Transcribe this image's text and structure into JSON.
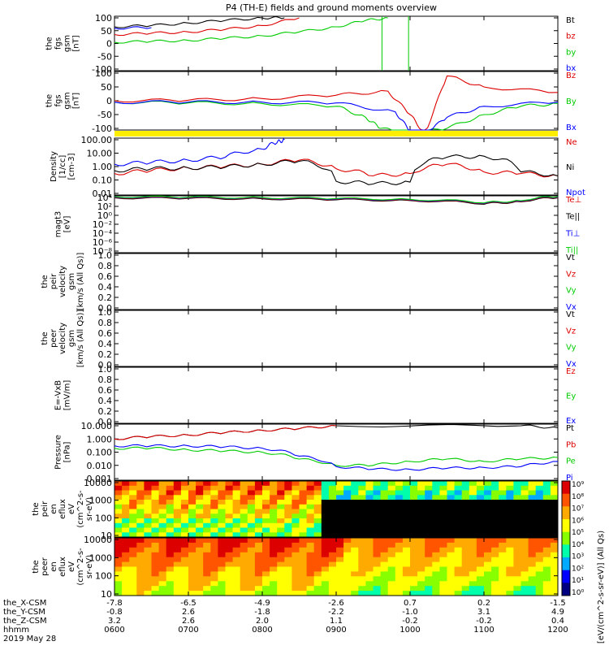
{
  "title": "P4 (TH-E) fields and ground moments overview",
  "colors": {
    "black": "#000000",
    "red": "#dd0000",
    "green": "#00cc00",
    "blue": "#0000ff",
    "yellow": "#ffee00",
    "panelBorder": "#000000"
  },
  "panels": [
    {
      "id": "fgs-gsm",
      "ylabel": [
        "the",
        "fgs",
        "gsm",
        "[nT]"
      ],
      "ticks": [
        "100",
        "50",
        "0",
        "-50",
        "-100"
      ],
      "legend": [
        {
          "text": "Bt",
          "color": "#000000"
        },
        {
          "text": "bz",
          "color": "#dd0000"
        },
        {
          "text": "by",
          "color": "#00cc00"
        },
        {
          "text": "bx",
          "color": "#0000ff"
        }
      ]
    },
    {
      "id": "fgs-gsm-2",
      "ylabel": [
        "the",
        "fgs",
        "gsm",
        "[nT]"
      ],
      "ticks": [
        "100",
        "50",
        "0",
        "-50",
        "-100"
      ],
      "legend": [
        {
          "text": "Bz",
          "color": "#dd0000"
        },
        {
          "text": "By",
          "color": "#00cc00"
        },
        {
          "text": "Bx",
          "color": "#0000ff"
        }
      ]
    },
    {
      "id": "density",
      "ylabel": [
        "Density",
        "[1/cc]",
        "[cm-3]"
      ],
      "ticks": [
        "100.00",
        "10.00",
        "1.00",
        "0.10",
        "0.01"
      ],
      "legend": [
        {
          "text": "Ne",
          "color": "#dd0000"
        },
        {
          "text": "Ni",
          "color": "#000000"
        },
        {
          "text": "Npot",
          "color": "#0000ff"
        }
      ]
    },
    {
      "id": "temperature",
      "ylabel": [
        "magt3",
        "[eV]"
      ],
      "ticks": [
        "10⁴",
        "10²",
        "10⁰",
        "10⁻²",
        "10⁻⁴",
        "10⁻⁶",
        "10⁻⁸"
      ],
      "legend": [
        {
          "text": "Te⊥",
          "color": "#dd0000"
        },
        {
          "text": "Te||",
          "color": "#000000"
        },
        {
          "text": "Ti⊥",
          "color": "#0000ff"
        },
        {
          "text": "Ti||",
          "color": "#00cc00"
        }
      ]
    },
    {
      "id": "peir-velocity",
      "ylabel": [
        "the",
        "peir",
        "velocity",
        "gsm",
        "[km/s (All Qs)]"
      ],
      "ticks": [
        "1.0",
        "0.8",
        "0.6",
        "0.4",
        "0.2",
        "0.0"
      ],
      "legend": [
        {
          "text": "Vt",
          "color": "#000000"
        },
        {
          "text": "Vz",
          "color": "#dd0000"
        },
        {
          "text": "Vy",
          "color": "#00cc00"
        },
        {
          "text": "Vx",
          "color": "#0000ff"
        }
      ]
    },
    {
      "id": "peer-velocity",
      "ylabel": [
        "the",
        "peer",
        "velocity",
        "gsm",
        "[km/s (All Qs)]"
      ],
      "ticks": [
        "1.0",
        "0.8",
        "0.6",
        "0.4",
        "0.2",
        "0.0"
      ],
      "legend": [
        {
          "text": "Vt",
          "color": "#000000"
        },
        {
          "text": "Vz",
          "color": "#dd0000"
        },
        {
          "text": "Vy",
          "color": "#00cc00"
        },
        {
          "text": "Vx",
          "color": "#0000ff"
        }
      ]
    },
    {
      "id": "efield",
      "ylabel": [
        "E=-VxB",
        "[mV/m]"
      ],
      "ticks": [
        "1.0",
        "0.8",
        "0.6",
        "0.4",
        "0.2",
        "0.0"
      ],
      "legend": [
        {
          "text": "Ez",
          "color": "#dd0000"
        },
        {
          "text": "Ey",
          "color": "#00cc00"
        },
        {
          "text": "Ex",
          "color": "#0000ff"
        }
      ]
    },
    {
      "id": "pressure",
      "ylabel": [
        "Pressure",
        "[nPa]"
      ],
      "ticks": [
        "10.000",
        "1.000",
        "0.100",
        "0.010",
        "0.001"
      ],
      "legend": [
        {
          "text": "Pt",
          "color": "#000000"
        },
        {
          "text": "Pb",
          "color": "#dd0000"
        },
        {
          "text": "Pe",
          "color": "#00cc00"
        },
        {
          "text": "Pi",
          "color": "#0000ff"
        }
      ]
    },
    {
      "id": "peir-spec",
      "ylabel": [
        "the",
        "peir",
        "en",
        "eflux",
        "eV",
        "(cm^2-s-",
        "sr-eV)"
      ],
      "ticks": [
        "10000",
        "1000",
        "100",
        "10"
      ],
      "legend": []
    },
    {
      "id": "peer-spec",
      "ylabel": [
        "the",
        "peer",
        "en",
        "eflux",
        "eV",
        "(cm^2-s-",
        "sr-eV)"
      ],
      "ticks": [
        "10000",
        "1000",
        "100",
        "10"
      ],
      "legend": []
    }
  ],
  "colorbar": {
    "label": "[eV/(cm^2-s-sr-eV)] (All Qs)",
    "ticks": [
      "10⁹",
      "10⁸",
      "10⁷",
      "10⁶",
      "10⁵",
      "10⁴",
      "10³",
      "10²",
      "10¹",
      "10⁰"
    ]
  },
  "xaxis": {
    "rowLabels": [
      "the_X-CSM",
      "the_Y-CSM",
      "the_Z-CSM",
      "hhmm",
      "2019 May 28"
    ],
    "columns": [
      [
        "-7.8",
        "-0.8",
        "3.2",
        "0600"
      ],
      [
        "-6.5",
        "2.6",
        "2.6",
        "0700"
      ],
      [
        "-4.9",
        "-1.8",
        "2.0",
        "0800"
      ],
      [
        "-2.6",
        "-2.2",
        "1.1",
        "0900"
      ],
      [
        "0.7",
        "-1.0",
        "-0.2",
        "1000"
      ],
      [
        "0.2",
        "3.1",
        "-0.2",
        "1100"
      ],
      [
        "-1.5",
        "4.9",
        "0.4",
        "1200"
      ]
    ]
  },
  "chart_data": {
    "type": "line",
    "title": "P4 (TH-E) fields and ground moments overview",
    "x_hours": [
      "0600",
      "0700",
      "0800",
      "0900",
      "1000",
      "1100",
      "1200"
    ],
    "series_panel1": [
      {
        "name": "Bt",
        "x": [
          6.0,
          6.5,
          7.0,
          7.5,
          8.0,
          8.3
        ],
        "values": [
          65,
          70,
          80,
          90,
          100,
          100
        ]
      },
      {
        "name": "bz",
        "x": [
          6.0,
          6.5,
          7.0,
          7.5,
          8.0,
          8.5
        ],
        "values": [
          35,
          40,
          45,
          55,
          70,
          100
        ]
      },
      {
        "name": "by",
        "x": [
          6.0,
          6.5,
          7.0,
          7.5,
          8.0,
          8.5,
          9.0,
          9.4,
          9.7
        ],
        "values": [
          5,
          8,
          12,
          20,
          30,
          45,
          65,
          90,
          100
        ]
      },
      {
        "name": "bx",
        "x": [
          6.0,
          6.5
        ],
        "values": [
          60,
          62
        ]
      }
    ],
    "series_panel2": [
      {
        "name": "Bz",
        "x": [
          6.0,
          7.0,
          8.0,
          9.0,
          9.7,
          10.0,
          10.2,
          10.5,
          11.0,
          12.0
        ],
        "values": [
          0,
          2,
          8,
          20,
          35,
          -50,
          -120,
          90,
          50,
          30
        ]
      },
      {
        "name": "By",
        "x": [
          6.0,
          7.0,
          8.0,
          9.0,
          9.4,
          9.6,
          10.0,
          10.5,
          11.0,
          11.5,
          12.0
        ],
        "values": [
          -5,
          -8,
          -10,
          -20,
          -60,
          -100,
          -120,
          -100,
          -50,
          -20,
          -10
        ]
      },
      {
        "name": "Bx",
        "x": [
          6.0,
          7.0,
          8.0,
          9.0,
          9.8,
          10.0,
          10.2,
          10.5,
          11.0,
          12.0
        ],
        "values": [
          -5,
          -5,
          -5,
          -8,
          -40,
          -110,
          -120,
          -60,
          -20,
          -5
        ]
      }
    ],
    "series_density": [
      {
        "name": "Ne",
        "x": [
          6.0,
          6.5,
          7.0,
          7.5,
          8.0,
          8.5,
          9.0,
          9.5,
          10.0,
          10.5,
          11.0,
          11.5,
          12.0
        ],
        "values": [
          0.3,
          0.5,
          0.8,
          1.0,
          1.5,
          3.0,
          0.7,
          0.2,
          0.3,
          1.5,
          0.4,
          0.3,
          0.2
        ]
      },
      {
        "name": "Ni",
        "x": [
          6.0,
          6.5,
          7.0,
          7.5,
          8.0,
          8.5,
          9.0,
          9.5,
          10.0,
          10.5,
          11.0,
          11.5,
          12.0
        ],
        "values": [
          0.5,
          0.7,
          0.8,
          0.9,
          1.5,
          2.5,
          0.08,
          0.05,
          0.07,
          5.0,
          6.0,
          0.4,
          0.2
        ]
      },
      {
        "name": "Npot",
        "x": [
          6.0,
          6.5,
          7.0,
          7.5,
          8.0,
          8.2,
          8.3
        ],
        "values": [
          1.5,
          2.0,
          3.0,
          5.0,
          20.0,
          60.0,
          100.0
        ]
      }
    ],
    "series_pressure": [
      {
        "name": "Pt",
        "x": [
          6.0,
          6.5,
          7.0,
          7.5,
          8.0,
          8.5,
          9.0,
          11.5,
          12.0
        ],
        "values": [
          1.0,
          1.5,
          2.0,
          3.0,
          4.5,
          6.0,
          10.0,
          10.0,
          7.0
        ]
      },
      {
        "name": "Pb",
        "x": [
          6.0,
          6.5,
          7.0,
          7.5,
          8.0,
          8.5,
          9.0
        ],
        "values": [
          1.0,
          1.5,
          2.0,
          3.0,
          4.5,
          6.0,
          10.0
        ]
      },
      {
        "name": "Pe",
        "x": [
          6.0,
          6.5,
          7.0,
          7.5,
          8.0,
          8.5,
          9.0,
          9.5,
          10.0,
          10.5,
          11.0,
          11.5,
          12.0
        ],
        "values": [
          0.2,
          0.2,
          0.15,
          0.12,
          0.1,
          0.03,
          0.01,
          0.01,
          0.02,
          0.03,
          0.02,
          0.03,
          0.04
        ]
      },
      {
        "name": "Pi",
        "x": [
          6.0,
          6.5,
          7.0,
          7.5,
          8.0,
          8.5,
          9.0,
          9.5,
          10.0,
          10.5,
          11.0,
          11.5,
          12.0
        ],
        "values": [
          0.3,
          0.3,
          0.3,
          0.25,
          0.2,
          0.05,
          0.008,
          0.005,
          0.005,
          0.006,
          0.007,
          0.008,
          0.02
        ]
      }
    ]
  }
}
